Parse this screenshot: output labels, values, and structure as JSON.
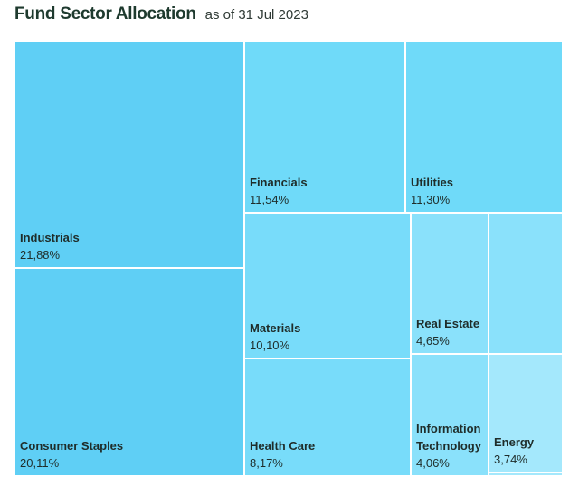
{
  "header": {
    "title": "Fund Sector Allocation",
    "subtitle": "as of 31 Jul 2023"
  },
  "chart_data": {
    "type": "treemap",
    "title": "Fund Sector Allocation",
    "subtitle": "as of 31 Jul 2023",
    "series": [
      {
        "name": "Industrials",
        "value_label": "21,88%",
        "value": 21.88,
        "color": "#5fcff5"
      },
      {
        "name": "Consumer Staples",
        "value_label": "20,11%",
        "value": 20.11,
        "color": "#5fcff5"
      },
      {
        "name": "Financials",
        "value_label": "11,54%",
        "value": 11.54,
        "color": "#6fdaf9"
      },
      {
        "name": "Utilities",
        "value_label": "11,30%",
        "value": 11.3,
        "color": "#6fdaf9"
      },
      {
        "name": "Materials",
        "value_label": "10,10%",
        "value": 10.1,
        "color": "#78dcfa"
      },
      {
        "name": "Health Care",
        "value_label": "8,17%",
        "value": 8.17,
        "color": "#78dcfa"
      },
      {
        "name": "Real Estate",
        "value_label": "4,65%",
        "value": 4.65,
        "color": "#8ae1fb"
      },
      {
        "name": "Information Technology",
        "value_label": "4,06%",
        "value": 4.06,
        "color": "#8ae1fb"
      },
      {
        "name": "Energy",
        "value_label": "3,74%",
        "value": 3.74,
        "color": "#a4e8fc"
      },
      {
        "name": "",
        "value_label": "",
        "value": null,
        "color": "#8ae1fb"
      },
      {
        "name": "",
        "value_label": "",
        "value": null,
        "color": "#a4e8fc"
      }
    ]
  }
}
